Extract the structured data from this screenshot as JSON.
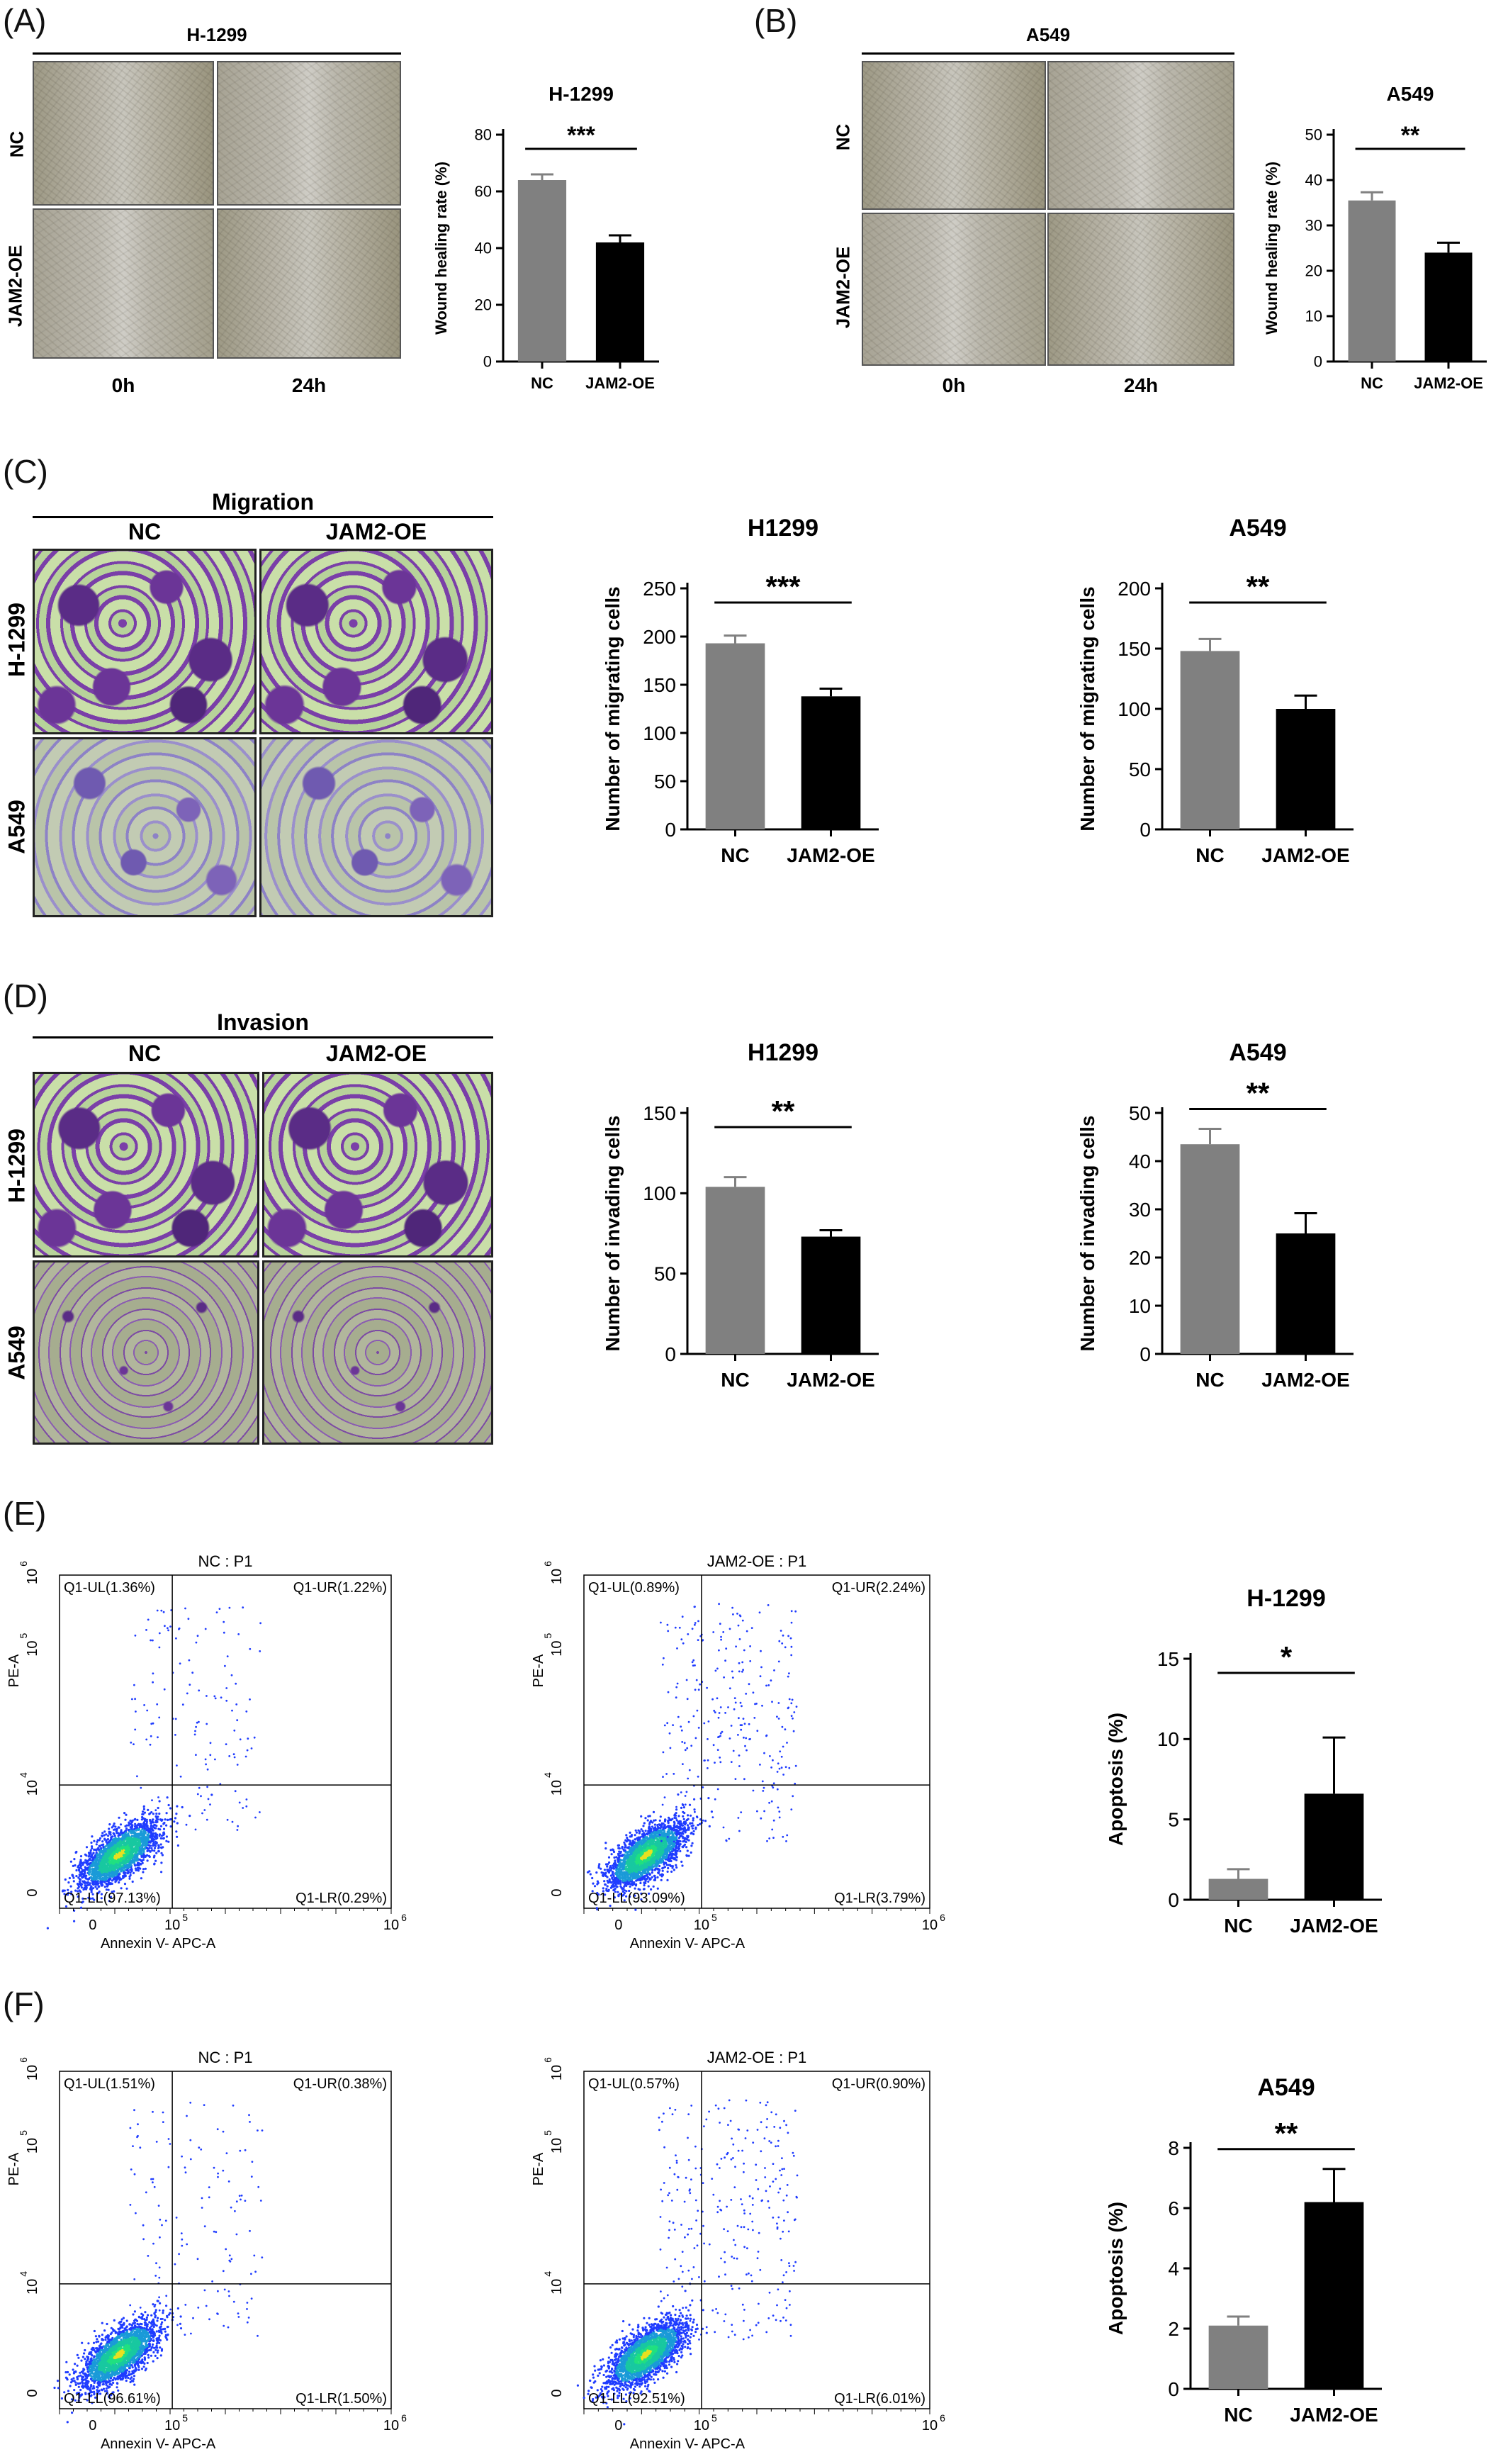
{
  "panels": {
    "A": {
      "label": "(A)",
      "cell_line": "H-1299",
      "row_labels": [
        "NC",
        "JAM2-OE"
      ],
      "col_labels": [
        "0h",
        "24h"
      ]
    },
    "B": {
      "label": "(B)",
      "cell_line": "A549",
      "row_labels": [
        "NC",
        "JAM2-OE"
      ],
      "col_labels": [
        "0h",
        "24h"
      ]
    },
    "C": {
      "label": "(C)",
      "title": "Migration",
      "col_labels": [
        "NC",
        "JAM2-OE"
      ],
      "row_labels": [
        "H-1299",
        "A549"
      ]
    },
    "D": {
      "label": "(D)",
      "title": "Invasion",
      "col_labels": [
        "NC",
        "JAM2-OE"
      ],
      "row_labels": [
        "H-1299",
        "A549"
      ]
    },
    "E": {
      "label": "(E)"
    },
    "F": {
      "label": "(F)"
    }
  },
  "flow": {
    "E_nc": {
      "title": "NC : P1",
      "ul": "Q1-UL(1.36%)",
      "ur": "Q1-UR(1.22%)",
      "ll": "Q1-LL(97.13%)",
      "lr": "Q1-LR(0.29%)",
      "xlabel": "Annexin V- APC-A",
      "ylabel": "PE-A"
    },
    "E_oe": {
      "title": "JAM2-OE : P1",
      "ul": "Q1-UL(0.89%)",
      "ur": "Q1-UR(2.24%)",
      "ll": "Q1-LL(93.09%)",
      "lr": "Q1-LR(3.79%)",
      "xlabel": "Annexin V- APC-A",
      "ylabel": "PE-A"
    },
    "F_nc": {
      "title": "NC : P1",
      "ul": "Q1-UL(1.51%)",
      "ur": "Q1-UR(0.38%)",
      "ll": "Q1-LL(96.61%)",
      "lr": "Q1-LR(1.50%)",
      "xlabel": "Annexin V- APC-A",
      "ylabel": "PE-A"
    },
    "F_oe": {
      "title": "JAM2-OE : P1",
      "ul": "Q1-UL(0.57%)",
      "ur": "Q1-UR(0.90%)",
      "ll": "Q1-LL(92.51%)",
      "lr": "Q1-LR(6.01%)",
      "xlabel": "Annexin V- APC-A",
      "ylabel": "PE-A"
    },
    "y_ticks": [
      "0",
      "10",
      "10",
      "10"
    ],
    "y_exps": [
      "",
      "4",
      "5",
      "6"
    ],
    "x_ticks": [
      "0",
      "10",
      "10"
    ],
    "x_exps": [
      "",
      "5",
      "6"
    ]
  },
  "colors": {
    "nc_bar": "#808080",
    "oe_bar": "#000000",
    "flow_dense": "#00c060",
    "flow_sparse": "#1f3cff"
  },
  "chart_data": [
    {
      "id": "A",
      "type": "bar",
      "title": "H-1299",
      "categories": [
        "NC",
        "JAM2-OE"
      ],
      "values": [
        64,
        42
      ],
      "errors": [
        2,
        2.5
      ],
      "ylabel": "Wound healing rate (%)",
      "ylim": [
        0,
        80
      ],
      "yticks": [
        0,
        20,
        40,
        60,
        80
      ],
      "significance": "***"
    },
    {
      "id": "B",
      "type": "bar",
      "title": "A549",
      "categories": [
        "NC",
        "JAM2-OE"
      ],
      "values": [
        35.5,
        24
      ],
      "errors": [
        1.8,
        2.2
      ],
      "ylabel": "Wound healing rate (%)",
      "ylim": [
        0,
        50
      ],
      "yticks": [
        0,
        10,
        20,
        30,
        40,
        50
      ],
      "significance": "**"
    },
    {
      "id": "C1",
      "type": "bar",
      "title": "H1299",
      "categories": [
        "NC",
        "JAM2-OE"
      ],
      "values": [
        193,
        138
      ],
      "errors": [
        8,
        8
      ],
      "ylabel": "Number of migrating cells",
      "ylim": [
        0,
        250
      ],
      "yticks": [
        0,
        50,
        100,
        150,
        200,
        250
      ],
      "significance": "***"
    },
    {
      "id": "C2",
      "type": "bar",
      "title": "A549",
      "categories": [
        "NC",
        "JAM2-OE"
      ],
      "values": [
        148,
        100
      ],
      "errors": [
        10,
        11
      ],
      "ylabel": "Number of migrating cells",
      "ylim": [
        0,
        200
      ],
      "yticks": [
        0,
        50,
        100,
        150,
        200
      ],
      "significance": "**"
    },
    {
      "id": "D1",
      "type": "bar",
      "title": "H1299",
      "categories": [
        "NC",
        "JAM2-OE"
      ],
      "values": [
        104,
        73
      ],
      "errors": [
        6,
        4
      ],
      "ylabel": "Number of invading cells",
      "ylim": [
        0,
        150
      ],
      "yticks": [
        0,
        50,
        100,
        150
      ],
      "significance": "**"
    },
    {
      "id": "D2",
      "type": "bar",
      "title": "A549",
      "categories": [
        "NC",
        "JAM2-OE"
      ],
      "values": [
        43.5,
        25
      ],
      "errors": [
        3.2,
        4.2
      ],
      "ylabel": "Number of invading cells",
      "ylim": [
        0,
        50
      ],
      "yticks": [
        0,
        10,
        20,
        30,
        40,
        50
      ],
      "significance": "**"
    },
    {
      "id": "E",
      "type": "bar",
      "title": "H-1299",
      "categories": [
        "NC",
        "JAM2-OE"
      ],
      "values": [
        1.3,
        6.6
      ],
      "errors": [
        0.6,
        3.5
      ],
      "ylabel": "Apoptosis (%)",
      "ylim": [
        0,
        15
      ],
      "yticks": [
        0,
        5,
        10,
        15
      ],
      "significance": "*"
    },
    {
      "id": "F",
      "type": "bar",
      "title": "A549",
      "categories": [
        "NC",
        "JAM2-OE"
      ],
      "values": [
        2.1,
        6.2
      ],
      "errors": [
        0.3,
        1.1
      ],
      "ylabel": "Apoptosis (%)",
      "ylim": [
        0,
        8
      ],
      "yticks": [
        0,
        2,
        4,
        6,
        8
      ],
      "significance": "**"
    }
  ]
}
